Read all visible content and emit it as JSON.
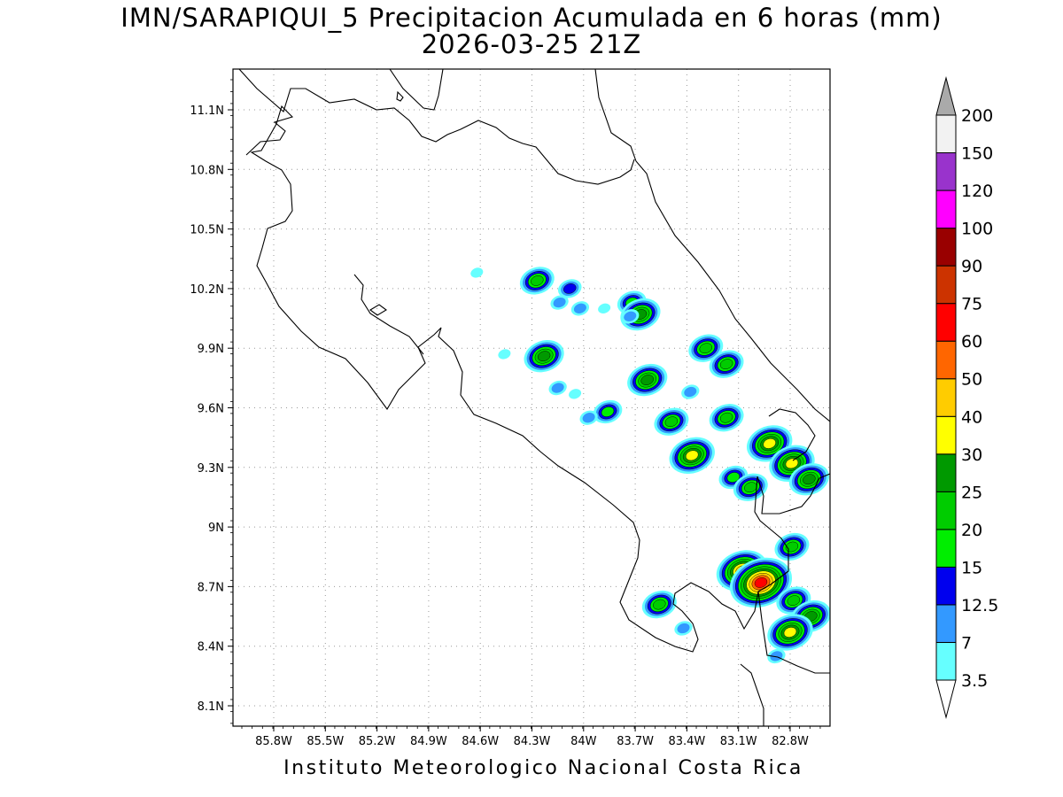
{
  "title": {
    "line1": "IMN/SARAPIQUI_5 Precipitacion Acumulada en 6 horas (mm)",
    "line2": "2026-03-25 21Z"
  },
  "footer": "Instituto Meteorologico Nacional Costa Rica",
  "axes": {
    "x_ticks": [
      "85.8W",
      "85.5W",
      "85.2W",
      "84.9W",
      "84.6W",
      "84.3W",
      "84W",
      "83.7W",
      "83.4W",
      "83.1W",
      "82.8W"
    ],
    "y_ticks": [
      "11.1N",
      "10.8N",
      "10.5N",
      "10.2N",
      "9.9N",
      "9.6N",
      "9.3N",
      "9N",
      "8.7N",
      "8.4N",
      "8.1N"
    ],
    "grid": "dotted"
  },
  "colorbar": {
    "levels": [
      "3.5",
      "7",
      "12.5",
      "15",
      "20",
      "25",
      "30",
      "40",
      "50",
      "60",
      "75",
      "90",
      "100",
      "120",
      "150",
      "200"
    ],
    "colors": [
      "#66ffff",
      "#3399ff",
      "#0000ee",
      "#00ee00",
      "#00cc00",
      "#009900",
      "#ffff00",
      "#ffcc00",
      "#ff6600",
      "#ff0000",
      "#cc3300",
      "#990000",
      "#ff00ff",
      "#9933cc",
      "#f2f2f2",
      "#aaaaaa"
    ],
    "extend": "both"
  },
  "chart_data": {
    "type": "heatmap",
    "units": "mm",
    "lon_range": [
      -85.95,
      -82.7
    ],
    "lat_range": [
      8.0,
      11.3
    ],
    "cells": [
      {
        "lon": -84.62,
        "lat": 10.28,
        "value": 5
      },
      {
        "lon": -84.27,
        "lat": 10.24,
        "value": 22
      },
      {
        "lon": -84.08,
        "lat": 10.2,
        "value": 14
      },
      {
        "lon": -84.14,
        "lat": 10.13,
        "value": 9
      },
      {
        "lon": -84.02,
        "lat": 10.1,
        "value": 8
      },
      {
        "lon": -83.88,
        "lat": 10.1,
        "value": 5
      },
      {
        "lon": -83.72,
        "lat": 10.13,
        "value": 15
      },
      {
        "lon": -83.67,
        "lat": 10.07,
        "value": 27
      },
      {
        "lon": -83.73,
        "lat": 10.06,
        "value": 12
      },
      {
        "lon": -84.23,
        "lat": 9.86,
        "value": 25
      },
      {
        "lon": -84.46,
        "lat": 9.87,
        "value": 5
      },
      {
        "lon": -84.15,
        "lat": 9.7,
        "value": 12
      },
      {
        "lon": -84.05,
        "lat": 9.67,
        "value": 5
      },
      {
        "lon": -83.86,
        "lat": 9.58,
        "value": 15
      },
      {
        "lon": -83.97,
        "lat": 9.55,
        "value": 8
      },
      {
        "lon": -83.63,
        "lat": 9.74,
        "value": 25
      },
      {
        "lon": -83.38,
        "lat": 9.68,
        "value": 9
      },
      {
        "lon": -83.29,
        "lat": 9.9,
        "value": 22
      },
      {
        "lon": -83.17,
        "lat": 9.82,
        "value": 20
      },
      {
        "lon": -83.49,
        "lat": 9.53,
        "value": 20
      },
      {
        "lon": -83.37,
        "lat": 9.36,
        "value": 30
      },
      {
        "lon": -83.17,
        "lat": 9.55,
        "value": 20
      },
      {
        "lon": -83.13,
        "lat": 9.25,
        "value": 18
      },
      {
        "lon": -83.03,
        "lat": 9.2,
        "value": 22
      },
      {
        "lon": -82.92,
        "lat": 9.42,
        "value": 33
      },
      {
        "lon": -82.79,
        "lat": 9.32,
        "value": 30
      },
      {
        "lon": -82.69,
        "lat": 9.24,
        "value": 28
      },
      {
        "lon": -82.79,
        "lat": 8.9,
        "value": 22
      },
      {
        "lon": -83.08,
        "lat": 8.78,
        "value": 42
      },
      {
        "lon": -82.97,
        "lat": 8.72,
        "value": 70
      },
      {
        "lon": -82.78,
        "lat": 8.63,
        "value": 22
      },
      {
        "lon": -82.68,
        "lat": 8.55,
        "value": 25
      },
      {
        "lon": -82.8,
        "lat": 8.47,
        "value": 32
      },
      {
        "lon": -83.56,
        "lat": 8.61,
        "value": 22
      },
      {
        "lon": -83.42,
        "lat": 8.49,
        "value": 8
      },
      {
        "lon": -82.88,
        "lat": 8.35,
        "value": 12
      }
    ]
  }
}
